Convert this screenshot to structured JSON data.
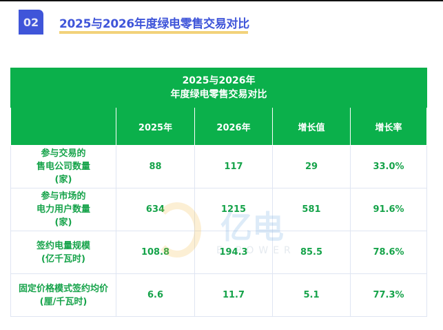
{
  "section": {
    "number": "02",
    "title": "2025与2026年度绿电零售交易对比"
  },
  "table": {
    "caption_line1": "2025与2026年",
    "caption_line2": "年度绿电零售交易对比",
    "headers": [
      "",
      "2025年",
      "2026年",
      "增长值",
      "增长率"
    ],
    "rows": [
      {
        "label": [
          "参与交易的",
          "售电公司数量",
          "(家)"
        ],
        "v2025": "88",
        "v2026": "117",
        "growth": "29",
        "rate": "33.0%"
      },
      {
        "label": [
          "参与市场的",
          "电力用户数量",
          "(家)"
        ],
        "v2025": "634",
        "v2026": "1215",
        "growth": "581",
        "rate": "91.6%"
      },
      {
        "label": [
          "签约电量规模",
          "(亿千瓦时)"
        ],
        "v2025": "108.8",
        "v2026": "194.3",
        "growth": "85.5",
        "rate": "78.6%"
      },
      {
        "label": [
          "固定价格模式签约均价",
          "(厘/千瓦时)"
        ],
        "v2025": "6.6",
        "v2026": "11.7",
        "growth": "5.1",
        "rate": "77.3%"
      }
    ]
  },
  "watermark": {
    "cn": "亿电",
    "en": "E-POWER"
  },
  "colors": {
    "accent": "#3f55d9",
    "green": "#0bb04b",
    "underline": "#f2d27a",
    "value": "#16a34a"
  }
}
